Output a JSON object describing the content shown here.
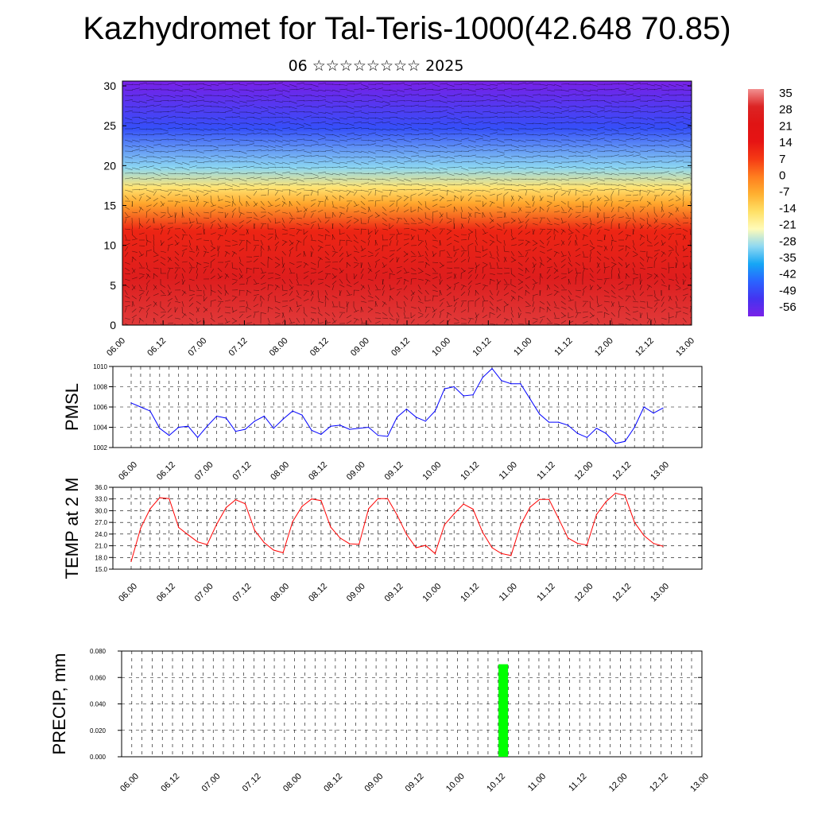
{
  "header": {
    "title": "Kazhydromet for Tal-Teris-1000(42.648 70.85)",
    "subtitle": "06 ☆☆☆☆☆☆☆☆ 2025"
  },
  "time_labels": [
    "06.00",
    "06.12",
    "07.00",
    "07.12",
    "08.00",
    "08.12",
    "09.00",
    "09.12",
    "10.00",
    "10.12",
    "11.00",
    "11.12",
    "12.00",
    "12.12",
    "13.00"
  ],
  "chart_data": [
    {
      "type": "heatmap",
      "name": "temperature-wind cross-section",
      "ylim": [
        0,
        30
      ],
      "yticks": [
        0,
        5,
        10,
        15,
        20,
        25,
        30
      ],
      "colorbar": {
        "labels": [
          "35",
          "28",
          "21",
          "14",
          "7",
          "0",
          "-7",
          "-14",
          "-21",
          "-28",
          "-35",
          "-42",
          "-49",
          "-56"
        ],
        "colors": [
          "#7a22e8",
          "#4433f0",
          "#2a63ff",
          "#15a6f5",
          "#8ed8f2",
          "#fffbb8",
          "#ffe066",
          "#ffb030",
          "#ff7d1e",
          "#f53a14",
          "#e61414",
          "#e01414",
          "#dc2424",
          "#f29090"
        ]
      },
      "layers": [
        {
          "y": 0,
          "value": 32
        },
        {
          "y": 6,
          "value": 27
        },
        {
          "y": 12,
          "value": 12
        },
        {
          "y": 15.5,
          "value": -6
        },
        {
          "y": 17.5,
          "value": -16
        },
        {
          "y": 20,
          "value": -30
        },
        {
          "y": 25,
          "value": -48
        },
        {
          "y": 30,
          "value": -58
        }
      ]
    },
    {
      "type": "line",
      "ylabel": "PMSL",
      "ylim": [
        1002,
        1010
      ],
      "yticks": [
        "1002",
        "1004",
        "1006",
        "1008",
        "1010"
      ],
      "color": "#0000ff",
      "series": [
        {
          "values": [
            1006.4,
            1006.0,
            1005.6,
            1003.9,
            1003.2,
            1004.0,
            1004.1,
            1003.0,
            1004.1,
            1005.1,
            1004.9,
            1003.6,
            1003.8,
            1004.6,
            1005.1,
            1003.9,
            1004.8,
            1005.6,
            1005.2,
            1003.7,
            1003.3,
            1004.1,
            1004.2,
            1003.8,
            1003.9,
            1004.0,
            1003.2,
            1003.1,
            1005.0,
            1005.8,
            1005.0,
            1004.6,
            1005.6,
            1007.8,
            1008.0,
            1007.1,
            1007.2,
            1008.9,
            1009.8,
            1008.6,
            1008.3,
            1008.3,
            1006.8,
            1005.3,
            1004.5,
            1004.5,
            1004.2,
            1003.4,
            1003.0,
            1003.9,
            1003.4,
            1002.4,
            1002.6,
            1004.0,
            1006.0,
            1005.4,
            1005.9
          ]
        }
      ]
    },
    {
      "type": "line",
      "ylabel": "TEMP at 2 M",
      "ylim": [
        15,
        36
      ],
      "yticks": [
        "15.0",
        "18.0",
        "21.0",
        "24.0",
        "27.0",
        "30.0",
        "33.0",
        "36.0"
      ],
      "color": "#ff0000",
      "series": [
        {
          "values": [
            17,
            25.5,
            30.5,
            33.3,
            33.1,
            25.7,
            23.8,
            22,
            21.3,
            26.5,
            30.8,
            32.8,
            31.8,
            25,
            21.8,
            19.9,
            19.2,
            27.2,
            31.1,
            33,
            32.6,
            25.8,
            23,
            21.5,
            21.4,
            30.5,
            33.1,
            33.1,
            28.9,
            23.9,
            20.5,
            21.1,
            19,
            26.4,
            29.2,
            31.7,
            30.4,
            24.5,
            20.5,
            19,
            18.5,
            26.3,
            30.9,
            32.9,
            32.9,
            28,
            23,
            21.6,
            21.2,
            29,
            32.3,
            34.5,
            33.9,
            27,
            23.6,
            21.6,
            20.9
          ]
        }
      ]
    },
    {
      "type": "bar",
      "ylabel": "PRECIP, mm",
      "ylim": [
        0,
        0.08
      ],
      "yticks": [
        "0.000",
        "0.020",
        "0.040",
        "0.060",
        "0.080"
      ],
      "color": "#00ff00",
      "bars": [
        {
          "x": 9.375,
          "value": 0.07
        }
      ]
    }
  ]
}
